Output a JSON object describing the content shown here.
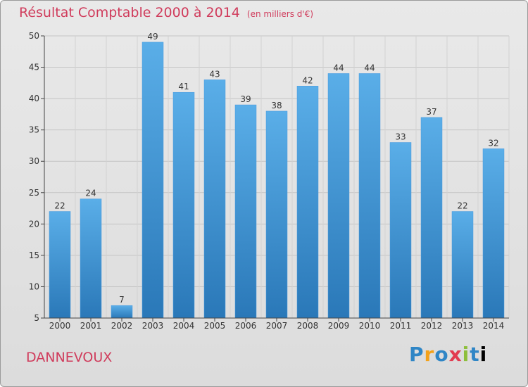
{
  "chart_data": {
    "type": "bar",
    "title": "Résultat Comptable 2000 à 2014",
    "unit_note": "(en milliers d'€)",
    "categories": [
      "2000",
      "2001",
      "2002",
      "2003",
      "2004",
      "2005",
      "2006",
      "2007",
      "2008",
      "2009",
      "2010",
      "2011",
      "2012",
      "2013",
      "2014"
    ],
    "values": [
      22,
      24,
      7,
      49,
      41,
      43,
      39,
      38,
      42,
      44,
      44,
      33,
      37,
      22,
      32
    ],
    "ylim": [
      5,
      50
    ],
    "yticks": [
      5,
      10,
      15,
      20,
      25,
      30,
      35,
      40,
      45,
      50
    ],
    "grid": true,
    "bar_color_top": "#5aaee8",
    "bar_color_bottom": "#2a78b8",
    "xlabel": "",
    "ylabel": ""
  },
  "commune": "DANNEVOUX",
  "logo": {
    "letters": [
      "P",
      "r",
      "o",
      "x",
      "i",
      "t",
      "i"
    ]
  }
}
